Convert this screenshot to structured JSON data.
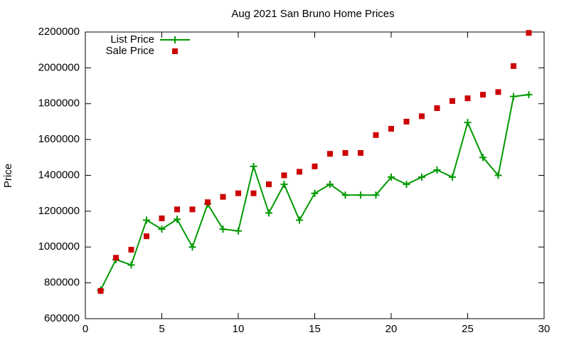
{
  "chart_data": {
    "type": "line",
    "title": "Aug 2021 San Bruno Home Prices",
    "y_label": "Price",
    "x": [
      1,
      2,
      3,
      4,
      5,
      6,
      7,
      8,
      9,
      10,
      11,
      12,
      13,
      14,
      15,
      16,
      17,
      18,
      19,
      20,
      21,
      22,
      23,
      24,
      25,
      26,
      27,
      28,
      29
    ],
    "series": [
      {
        "name": "List Price",
        "color": "#009900",
        "marker": "plus",
        "line": true,
        "values": [
          760000,
          930000,
          900000,
          1150000,
          1100000,
          1155000,
          1000000,
          1240000,
          1100000,
          1090000,
          1450000,
          1190000,
          1350000,
          1150000,
          1300000,
          1350000,
          1290000,
          1290000,
          1290000,
          1390000,
          1350000,
          1390000,
          1430000,
          1390000,
          1695000,
          1500000,
          1400000,
          1840000,
          1850000
        ]
      },
      {
        "name": "Sale Price",
        "color": "#cc0000",
        "marker": "square",
        "line": false,
        "values": [
          755000,
          940000,
          985000,
          1060000,
          1160000,
          1210000,
          1210000,
          1250000,
          1280000,
          1300000,
          1300000,
          1350000,
          1400000,
          1420000,
          1450000,
          1520000,
          1525000,
          1525000,
          1625000,
          1660000,
          1700000,
          1730000,
          1775000,
          1815000,
          1830000,
          1850000,
          1865000,
          2010000,
          2195000
        ]
      }
    ],
    "xlim": [
      0,
      30
    ],
    "xticks": [
      0,
      5,
      10,
      15,
      20,
      25,
      30
    ],
    "ylim": [
      600000,
      2200000
    ],
    "yticks": [
      600000,
      800000,
      1000000,
      1200000,
      1400000,
      1600000,
      1800000,
      2000000,
      2200000
    ],
    "grid": false,
    "legend": "top-left"
  }
}
